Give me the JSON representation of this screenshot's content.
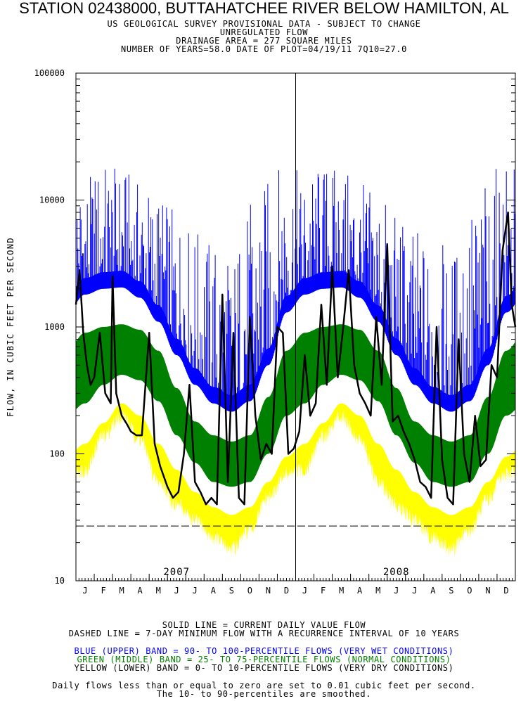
{
  "header": {
    "title": "STATION 02438000, BUTTAHATCHEE RIVER BELOW HAMILTON, AL",
    "lines": [
      "US GEOLOGICAL SURVEY PROVISIONAL DATA - SUBJECT TO CHANGE",
      "UNREGULATED FLOW",
      "DRAINAGE AREA = 277 SQUARE MILES",
      "NUMBER OF YEARS=58.0 DATE OF PLOT=04/19/11 7Q10=27.0"
    ]
  },
  "footer": {
    "solid": "SOLID LINE = CURRENT DAILY VALUE FLOW",
    "dashed": "DASHED LINE = 7-DAY MINIMUM FLOW WITH A RECURRENCE INTERVAL OF 10 YEARS",
    "blue": "BLUE (UPPER) BAND = 90- TO 100-PERCENTILE FLOWS (VERY WET CONDITIONS)",
    "green": "GREEN (MIDDLE) BAND = 25- TO 75-PERCENTILE FLOWS (NORMAL CONDITIONS)",
    "yellow": "YELLOW (LOWER) BAND = 0- TO 10-PERCENTILE FLOWS (VERY DRY CONDITIONS)",
    "note1": "Daily flows less than or equal to zero are set to 0.01 cubic feet per second.",
    "note2": "The 10- to 90-percentiles are smoothed."
  },
  "chart_data": {
    "type": "area",
    "ylabel": "FLOW, IN CUBIC FEET PER SECOND",
    "yscale": "log",
    "ylim": [
      10,
      100000
    ],
    "y_ticks": [
      "100000",
      "10000",
      "1000",
      "100",
      "10"
    ],
    "years": [
      "2007",
      "2008"
    ],
    "month_labels": [
      "J",
      "F",
      "M",
      "A",
      "M",
      "J",
      "J",
      "A",
      "S",
      "O",
      "N",
      "D",
      "J",
      "F",
      "M",
      "A",
      "M",
      "J",
      "J",
      "A",
      "S",
      "O",
      "N",
      "D"
    ],
    "reference_line": {
      "name": "7Q10",
      "value": 27.0
    },
    "colors": {
      "blue": "#0000ff",
      "green": "#008000",
      "yellow": "#ffff00",
      "current": "#000000"
    },
    "months_x": [
      0.5,
      1.5,
      2.5,
      3.5,
      4.5,
      5.5,
      6.5,
      7.5,
      8.5,
      9.5,
      10.5,
      11.5
    ],
    "percentile_bands": {
      "p10": [
        120,
        175,
        250,
        200,
        120,
        75,
        50,
        38,
        33,
        38,
        60,
        95
      ],
      "p25": [
        250,
        350,
        420,
        380,
        260,
        140,
        85,
        60,
        55,
        60,
        100,
        200
      ],
      "p75": [
        900,
        1000,
        1050,
        950,
        650,
        330,
        180,
        140,
        125,
        140,
        280,
        650
      ],
      "p90": [
        1800,
        2000,
        2050,
        1700,
        1100,
        600,
        350,
        250,
        215,
        260,
        500,
        1300
      ],
      "p0": [
        75,
        140,
        200,
        130,
        60,
        40,
        30,
        22,
        18,
        25,
        45,
        70
      ],
      "p100_peak": [
        15000,
        20000,
        18000,
        14000,
        12000,
        8000,
        6000,
        5000,
        4000,
        10000,
        15000,
        22000
      ]
    },
    "current_daily_flow": {
      "x_months": [
        0.0,
        0.2,
        0.4,
        0.6,
        0.8,
        1.0,
        1.3,
        1.6,
        1.9,
        2.0,
        2.2,
        2.5,
        2.8,
        3.0,
        3.3,
        3.6,
        4.0,
        4.3,
        4.6,
        5.0,
        5.3,
        5.6,
        5.9,
        6.2,
        6.5,
        6.8,
        7.1,
        7.4,
        7.7,
        8.0,
        8.3,
        8.6,
        8.9,
        9.2,
        9.5,
        9.8,
        10.1,
        10.4,
        10.7,
        11.0,
        11.3,
        11.6,
        11.9,
        12.2,
        12.5,
        12.8,
        13.1,
        13.4,
        13.7,
        14.0,
        14.3,
        14.6,
        14.9,
        15.2,
        15.5,
        15.8,
        16.1,
        16.4,
        16.7,
        17.0,
        17.3,
        17.6,
        17.9,
        18.2,
        18.5,
        18.8,
        19.1,
        19.4,
        19.7,
        20.0,
        20.3,
        20.6,
        20.9,
        21.2,
        21.5,
        21.8,
        22.1,
        22.4,
        22.7,
        23.0,
        23.3,
        23.6,
        23.8,
        24.0
      ],
      "values": [
        1500,
        2800,
        900,
        500,
        350,
        400,
        900,
        300,
        250,
        2500,
        300,
        200,
        170,
        150,
        140,
        140,
        900,
        120,
        80,
        55,
        45,
        50,
        100,
        350,
        60,
        50,
        40,
        45,
        40,
        1800,
        60,
        900,
        45,
        40,
        1200,
        200,
        90,
        120,
        100,
        1000,
        900,
        100,
        110,
        150,
        600,
        200,
        250,
        1500,
        350,
        3000,
        400,
        1000,
        2800,
        500,
        300,
        250,
        200,
        1200,
        350,
        4500,
        180,
        200,
        150,
        120,
        90,
        60,
        55,
        45,
        1000,
        90,
        45,
        40,
        800,
        100,
        60,
        200,
        80,
        90,
        500,
        400,
        4000,
        8000,
        1500,
        1000
      ]
    }
  }
}
